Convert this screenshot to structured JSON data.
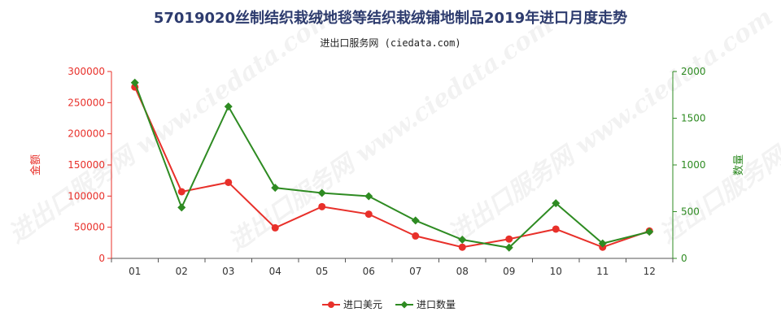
{
  "title": "57019020丝制结织栽绒地毯等结织栽绒铺地制品2019年进口月度走势",
  "subtitle": "进出口服务网 (ciedata.com)",
  "watermark": "进出口服务网 www.ciedata.com",
  "chart_data": {
    "type": "line",
    "categories": [
      "01",
      "02",
      "03",
      "04",
      "05",
      "06",
      "07",
      "08",
      "09",
      "10",
      "11",
      "12"
    ],
    "y_left": {
      "label": "金额",
      "ticks": [
        "0",
        "50000",
        "100000",
        "150000",
        "200000",
        "250000",
        "300000"
      ],
      "ylim": [
        0,
        300000
      ],
      "color": "#e8302a"
    },
    "y_right": {
      "label": "数量",
      "ticks": [
        "0",
        "500",
        "1000",
        "1500",
        "2000"
      ],
      "ylim": [
        0,
        2000
      ],
      "color": "#2e8b22"
    },
    "series": [
      {
        "name": "进口美元",
        "axis": "left",
        "color": "#e8302a",
        "marker": "circle",
        "values": [
          275000,
          107000,
          122000,
          49000,
          83000,
          71000,
          36000,
          18000,
          31000,
          47000,
          18000,
          44000
        ]
      },
      {
        "name": "进口数量",
        "axis": "right",
        "color": "#2e8b22",
        "marker": "diamond",
        "values": [
          1880,
          545,
          1625,
          755,
          700,
          665,
          405,
          200,
          115,
          590,
          160,
          285
        ]
      }
    ],
    "grid": false,
    "legend": "bottom-center"
  }
}
